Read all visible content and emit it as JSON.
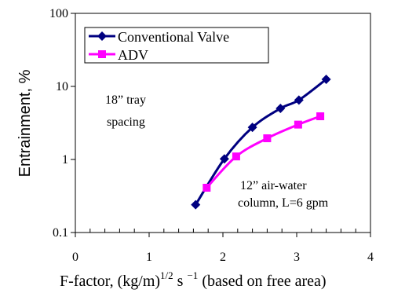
{
  "chart_data": {
    "type": "line",
    "title": "",
    "xlabel": {
      "main": "F-factor, (kg/m)",
      "sup1": "1/2",
      "mid": " s ",
      "sup2": "−1",
      "tail": " (based on free area)"
    },
    "ylabel": "Entrainment, %",
    "xlim": [
      0,
      4
    ],
    "ylim": [
      0.1,
      100
    ],
    "yscale": "log",
    "grid": false,
    "xticks": [
      {
        "value": 0,
        "label": "0"
      },
      {
        "value": 1,
        "label": "1"
      },
      {
        "value": 2,
        "label": "2"
      },
      {
        "value": 3,
        "label": "3"
      },
      {
        "value": 4,
        "label": "4"
      }
    ],
    "yticks": [
      {
        "value": 0.1,
        "label": "0.1"
      },
      {
        "value": 1,
        "label": "1"
      },
      {
        "value": 10,
        "label": "10"
      },
      {
        "value": 100,
        "label": "100"
      }
    ],
    "legend": {
      "position": "top-left",
      "entries": [
        "Conventional Valve",
        "ADV"
      ]
    },
    "series": [
      {
        "name": "Conventional Valve",
        "color": "#000080",
        "marker": "diamond",
        "x": [
          1.63,
          2.02,
          2.4,
          2.78,
          3.03,
          3.4
        ],
        "y": [
          0.24,
          1.02,
          2.75,
          5.0,
          6.5,
          12.5
        ]
      },
      {
        "name": "ADV",
        "color": "#ff00ff",
        "marker": "square",
        "x": [
          1.78,
          2.18,
          2.6,
          3.02,
          3.32
        ],
        "y": [
          0.41,
          1.1,
          1.95,
          3.0,
          3.9
        ]
      }
    ],
    "annotations": [
      {
        "lines": [
          "18” tray",
          "spacing"
        ]
      },
      {
        "lines": [
          "12” air-water",
          "column, L=6 gpm"
        ]
      }
    ]
  }
}
